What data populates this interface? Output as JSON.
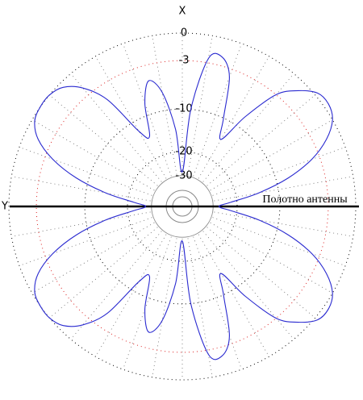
{
  "chart_data": {
    "type": "polar",
    "x_label": "X",
    "y_label": "Y",
    "annotation": "Полотно антенны",
    "rticks": [
      0,
      -3,
      -10,
      -20,
      -30
    ],
    "grid_colors": [
      "#000000",
      "#dd2222",
      "#000000",
      "#000000",
      "#888888"
    ],
    "color": "#2a2ad0",
    "theta": [
      0,
      5,
      10,
      15,
      20,
      25,
      30,
      35,
      40,
      45,
      50,
      55,
      60,
      65,
      70,
      75,
      80,
      85,
      90,
      95,
      100,
      105,
      110,
      115,
      120,
      125,
      130,
      135,
      140,
      145,
      150,
      155,
      160,
      165,
      170,
      175,
      180,
      185,
      190,
      195,
      200,
      205,
      210,
      215,
      220,
      225,
      230,
      235,
      240,
      245,
      250,
      255,
      260,
      265,
      270,
      275,
      280,
      285,
      290,
      295,
      300,
      305,
      310,
      315,
      320,
      325,
      330,
      335,
      340,
      345,
      350,
      355
    ],
    "values": [
      -28,
      -10,
      -2.5,
      -2,
      -4,
      -10,
      -14,
      -8,
      -3,
      -1,
      0.3,
      0.5,
      0,
      -1.5,
      -4,
      -8,
      -14,
      -22,
      -27,
      -22,
      -14,
      -8,
      -4,
      -1.5,
      0,
      0.5,
      0.3,
      -1,
      -3,
      -8,
      -14,
      -10,
      -4,
      -2,
      -2.5,
      -10,
      -28,
      -14,
      -7,
      -5,
      -8,
      -14,
      -12,
      -5,
      -2,
      -0.5,
      0,
      0,
      -0.3,
      -1.5,
      -4,
      -8,
      -14,
      -22,
      -27,
      -22,
      -14,
      -8,
      -4,
      -1.5,
      -0.3,
      0,
      0,
      -0.5,
      -2,
      -5,
      -12,
      -14,
      -8,
      -5,
      -7,
      -14
    ]
  }
}
